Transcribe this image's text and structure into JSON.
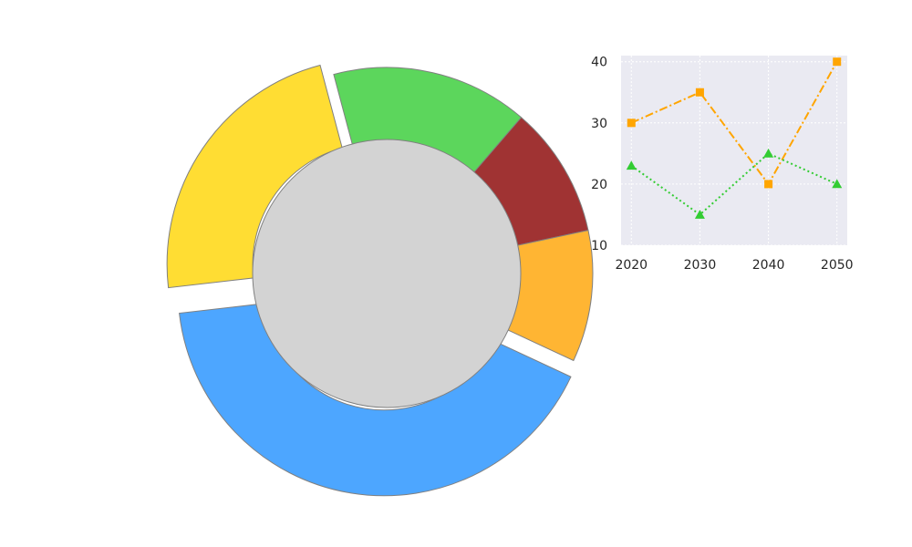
{
  "chart_data": [
    {
      "type": "pie",
      "subtype": "donut",
      "title": "",
      "slices": [
        {
          "value": 40,
          "color": "#4da6ff",
          "exploded": true
        },
        {
          "value": 22,
          "color": "#ffdd33",
          "exploded": true
        },
        {
          "value": 15,
          "color": "#5cd65c",
          "exploded": false
        },
        {
          "value": 10,
          "color": "#a03333",
          "exploded": false
        },
        {
          "value": 10,
          "color": "#ffb533",
          "exploded": false
        }
      ],
      "center_color": "#d3d3d3"
    },
    {
      "type": "line",
      "title": "",
      "xlabel": "",
      "ylabel": "",
      "x": [
        2020,
        2030,
        2040,
        2050
      ],
      "xticks": [
        "2020",
        "2030",
        "2040",
        "2050"
      ],
      "yticks": [
        "10",
        "20",
        "30",
        "40"
      ],
      "xlim": [
        2018.5,
        2051.5
      ],
      "ylim": [
        10,
        41
      ],
      "grid": true,
      "background": "#eaeaf2",
      "series": [
        {
          "values": [
            30,
            35,
            20,
            40
          ],
          "color": "#ffa500",
          "marker": "square",
          "linestyle": "dashdot"
        },
        {
          "values": [
            23,
            15,
            25,
            20
          ],
          "color": "#33cc33",
          "marker": "triangle",
          "linestyle": "dotted"
        }
      ]
    }
  ]
}
